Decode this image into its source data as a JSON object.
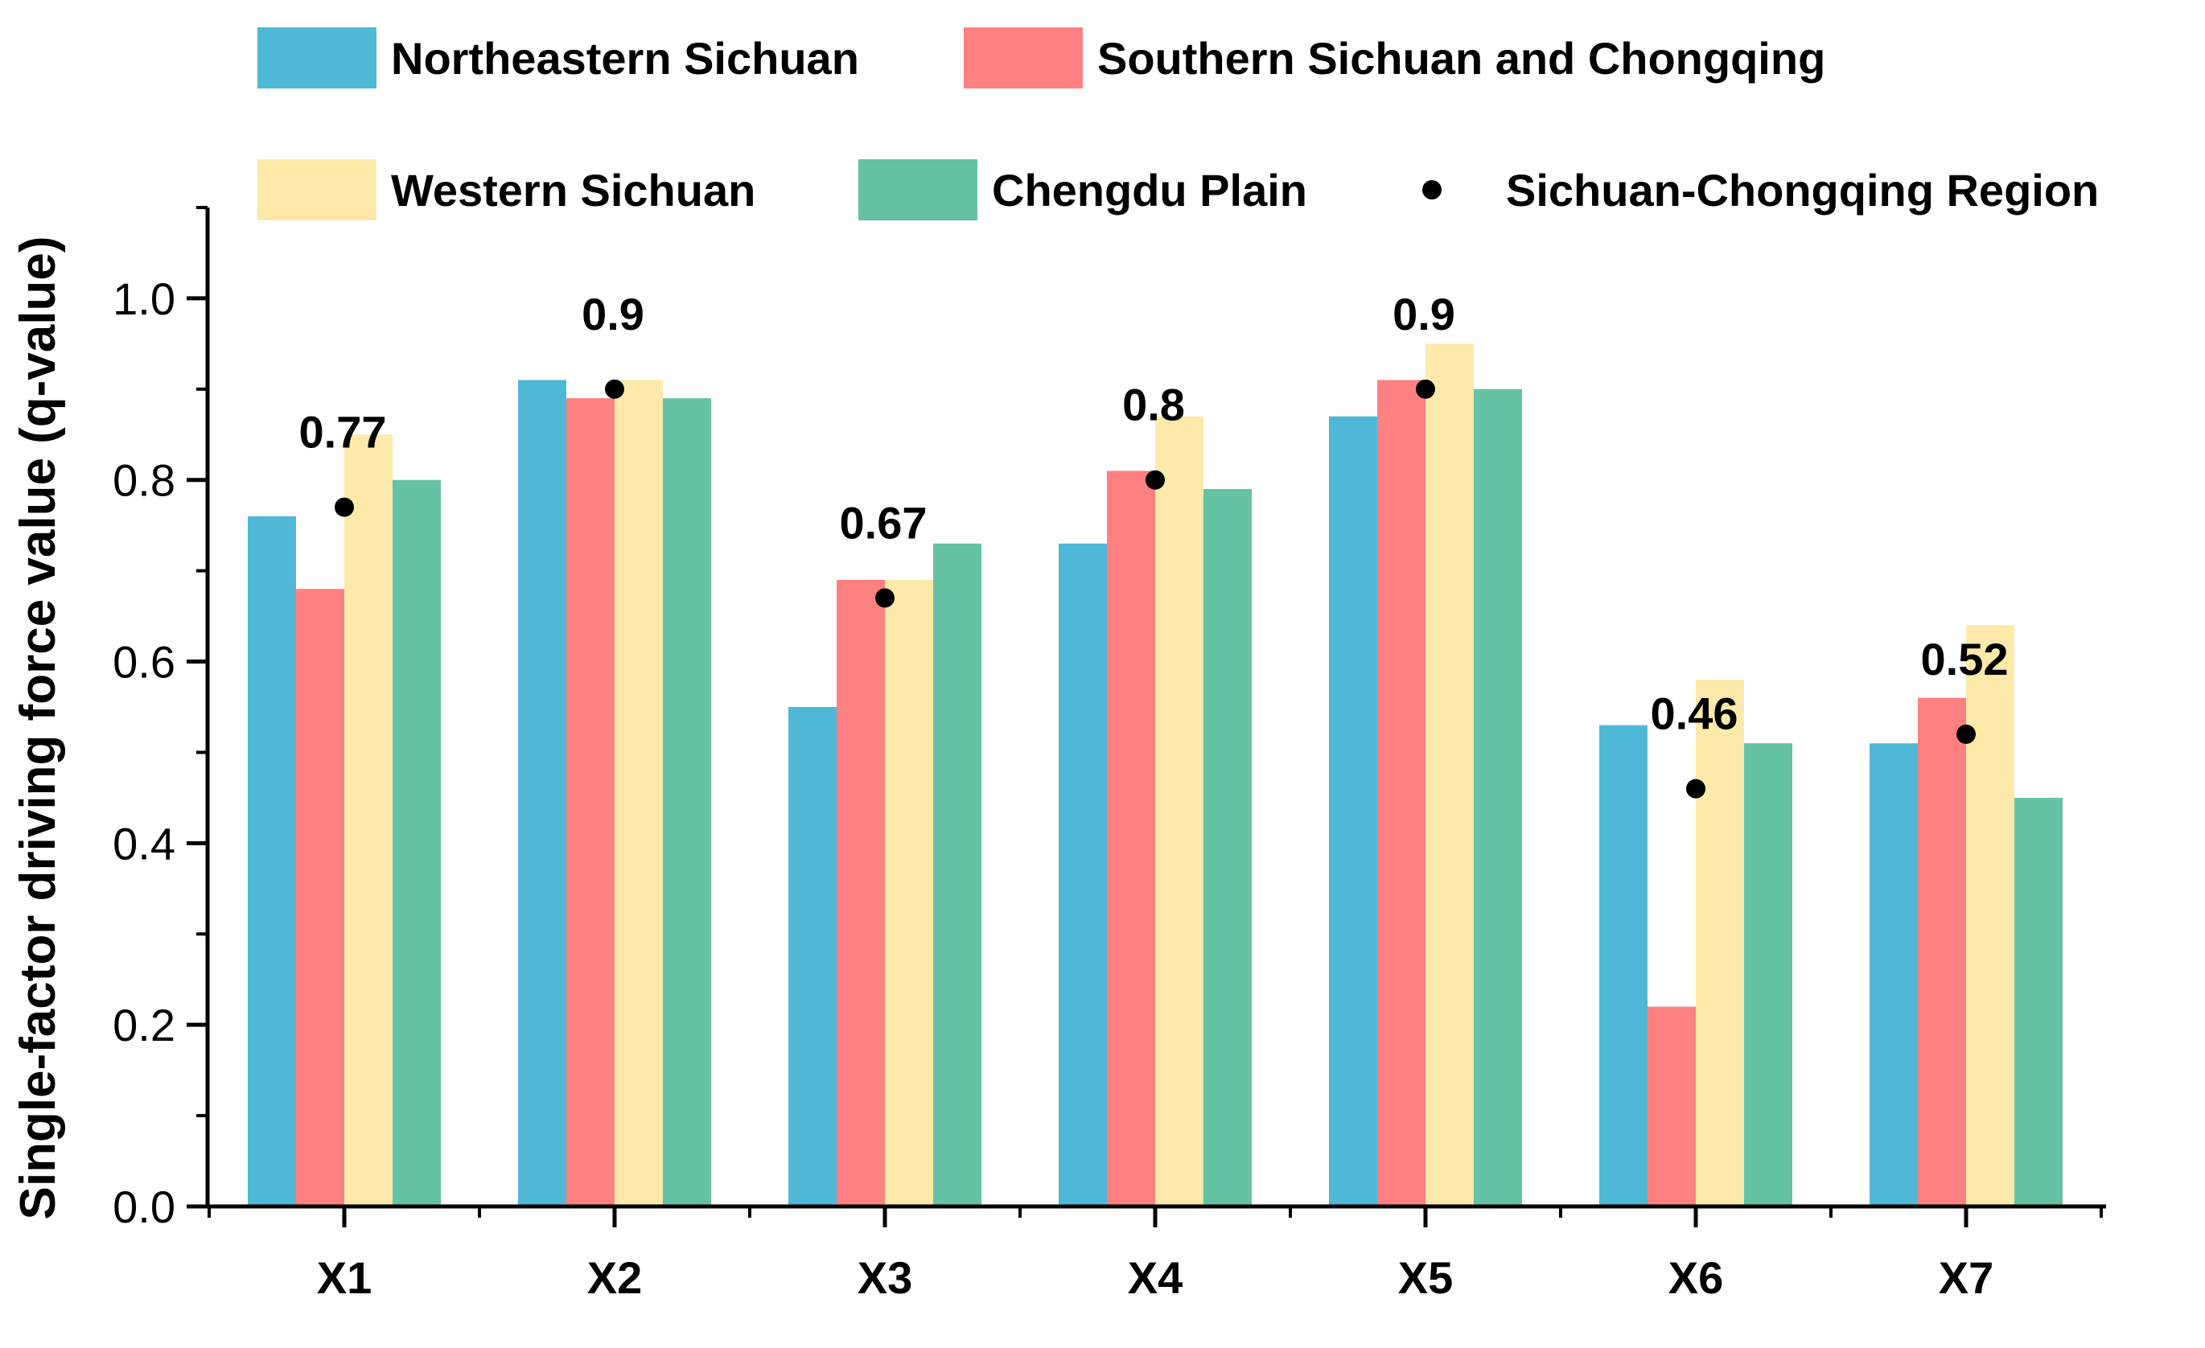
{
  "chart_data": {
    "type": "bar",
    "title": "",
    "xlabel": "",
    "ylabel": "Single-factor driving force value (q-value)",
    "ylim": [
      0,
      1.1
    ],
    "yticks": [
      "0.0",
      "0.2",
      "0.4",
      "0.6",
      "0.8",
      "1.0"
    ],
    "grid": false,
    "legend_position": "top",
    "categories": [
      "X1",
      "X2",
      "X3",
      "X4",
      "X5",
      "X6",
      "X7"
    ],
    "series": [
      {
        "name": "Northeastern Sichuan",
        "color": "#4FB8D7",
        "values": [
          0.76,
          0.91,
          0.55,
          0.73,
          0.87,
          0.53,
          0.51
        ]
      },
      {
        "name": "Southern Sichuan and Chongqing",
        "color": "#FE8080",
        "values": [
          0.68,
          0.89,
          0.69,
          0.81,
          0.91,
          0.22,
          0.56
        ]
      },
      {
        "name": "Western Sichuan",
        "color": "#FDE9AA",
        "values": [
          0.85,
          0.91,
          0.69,
          0.87,
          0.95,
          0.58,
          0.64
        ]
      },
      {
        "name": "Chengdu Plain",
        "color": "#65C2A4",
        "values": [
          0.8,
          0.89,
          0.73,
          0.79,
          0.9,
          0.51,
          0.45
        ]
      }
    ],
    "points": {
      "name": "Sichuan-Chongqing Region",
      "color": "#000000",
      "values": [
        0.77,
        0.9,
        0.67,
        0.8,
        0.9,
        0.46,
        0.52
      ],
      "labels": [
        "0.77",
        "0.9",
        "0.67",
        "0.8",
        "0.9",
        "0.46",
        "0.52"
      ]
    }
  }
}
